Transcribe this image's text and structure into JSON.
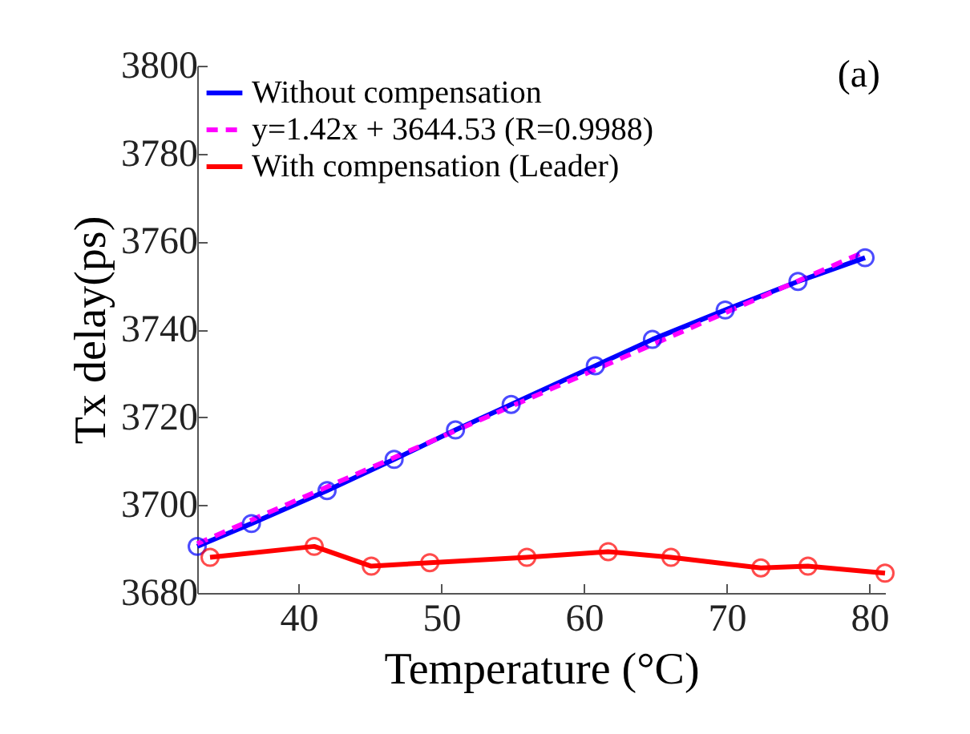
{
  "chart_data": {
    "type": "line",
    "xlabel": "Temperature (°C)",
    "ylabel": "Tx delay(ps)",
    "annotations": [
      "(a)"
    ],
    "xlim": [
      32.9,
      81.1
    ],
    "xticks": [
      40,
      50,
      60,
      70,
      80
    ],
    "ylim": [
      3680,
      3800
    ],
    "yticks": [
      3680,
      3700,
      3720,
      3740,
      3760,
      3780,
      3800
    ],
    "grid": false,
    "legend": "top left",
    "marker": "circle",
    "line_style": "solid",
    "series": [
      {
        "name": "Without compensation",
        "color": "#0000ff",
        "x": [
          32.9,
          36.7,
          42.0,
          46.7,
          51.0,
          54.9,
          60.8,
          64.8,
          69.9,
          75.0,
          79.7
        ],
        "values": [
          3690.6,
          3695.8,
          3703.3,
          3710.4,
          3717.1,
          3722.9,
          3731.7,
          3737.7,
          3744.4,
          3750.9,
          3756.3
        ]
      },
      {
        "name": "y=1.42x + 3644.53 (R=0.9988)",
        "color": "#ff00ff",
        "line_style": "dashed",
        "marker": "none",
        "x": [
          32.9,
          79.7
        ],
        "values": [
          3691.2,
          3757.7
        ]
      },
      {
        "name": "With compensation (Leader)",
        "color": "#ff0000",
        "x": [
          33.8,
          41.1,
          45.1,
          49.2,
          56.0,
          61.7,
          66.1,
          72.4,
          75.7,
          81.1
        ],
        "values": [
          3688.1,
          3690.6,
          3686.1,
          3686.9,
          3688.1,
          3689.4,
          3688.1,
          3685.7,
          3686.1,
          3684.5
        ]
      }
    ]
  }
}
